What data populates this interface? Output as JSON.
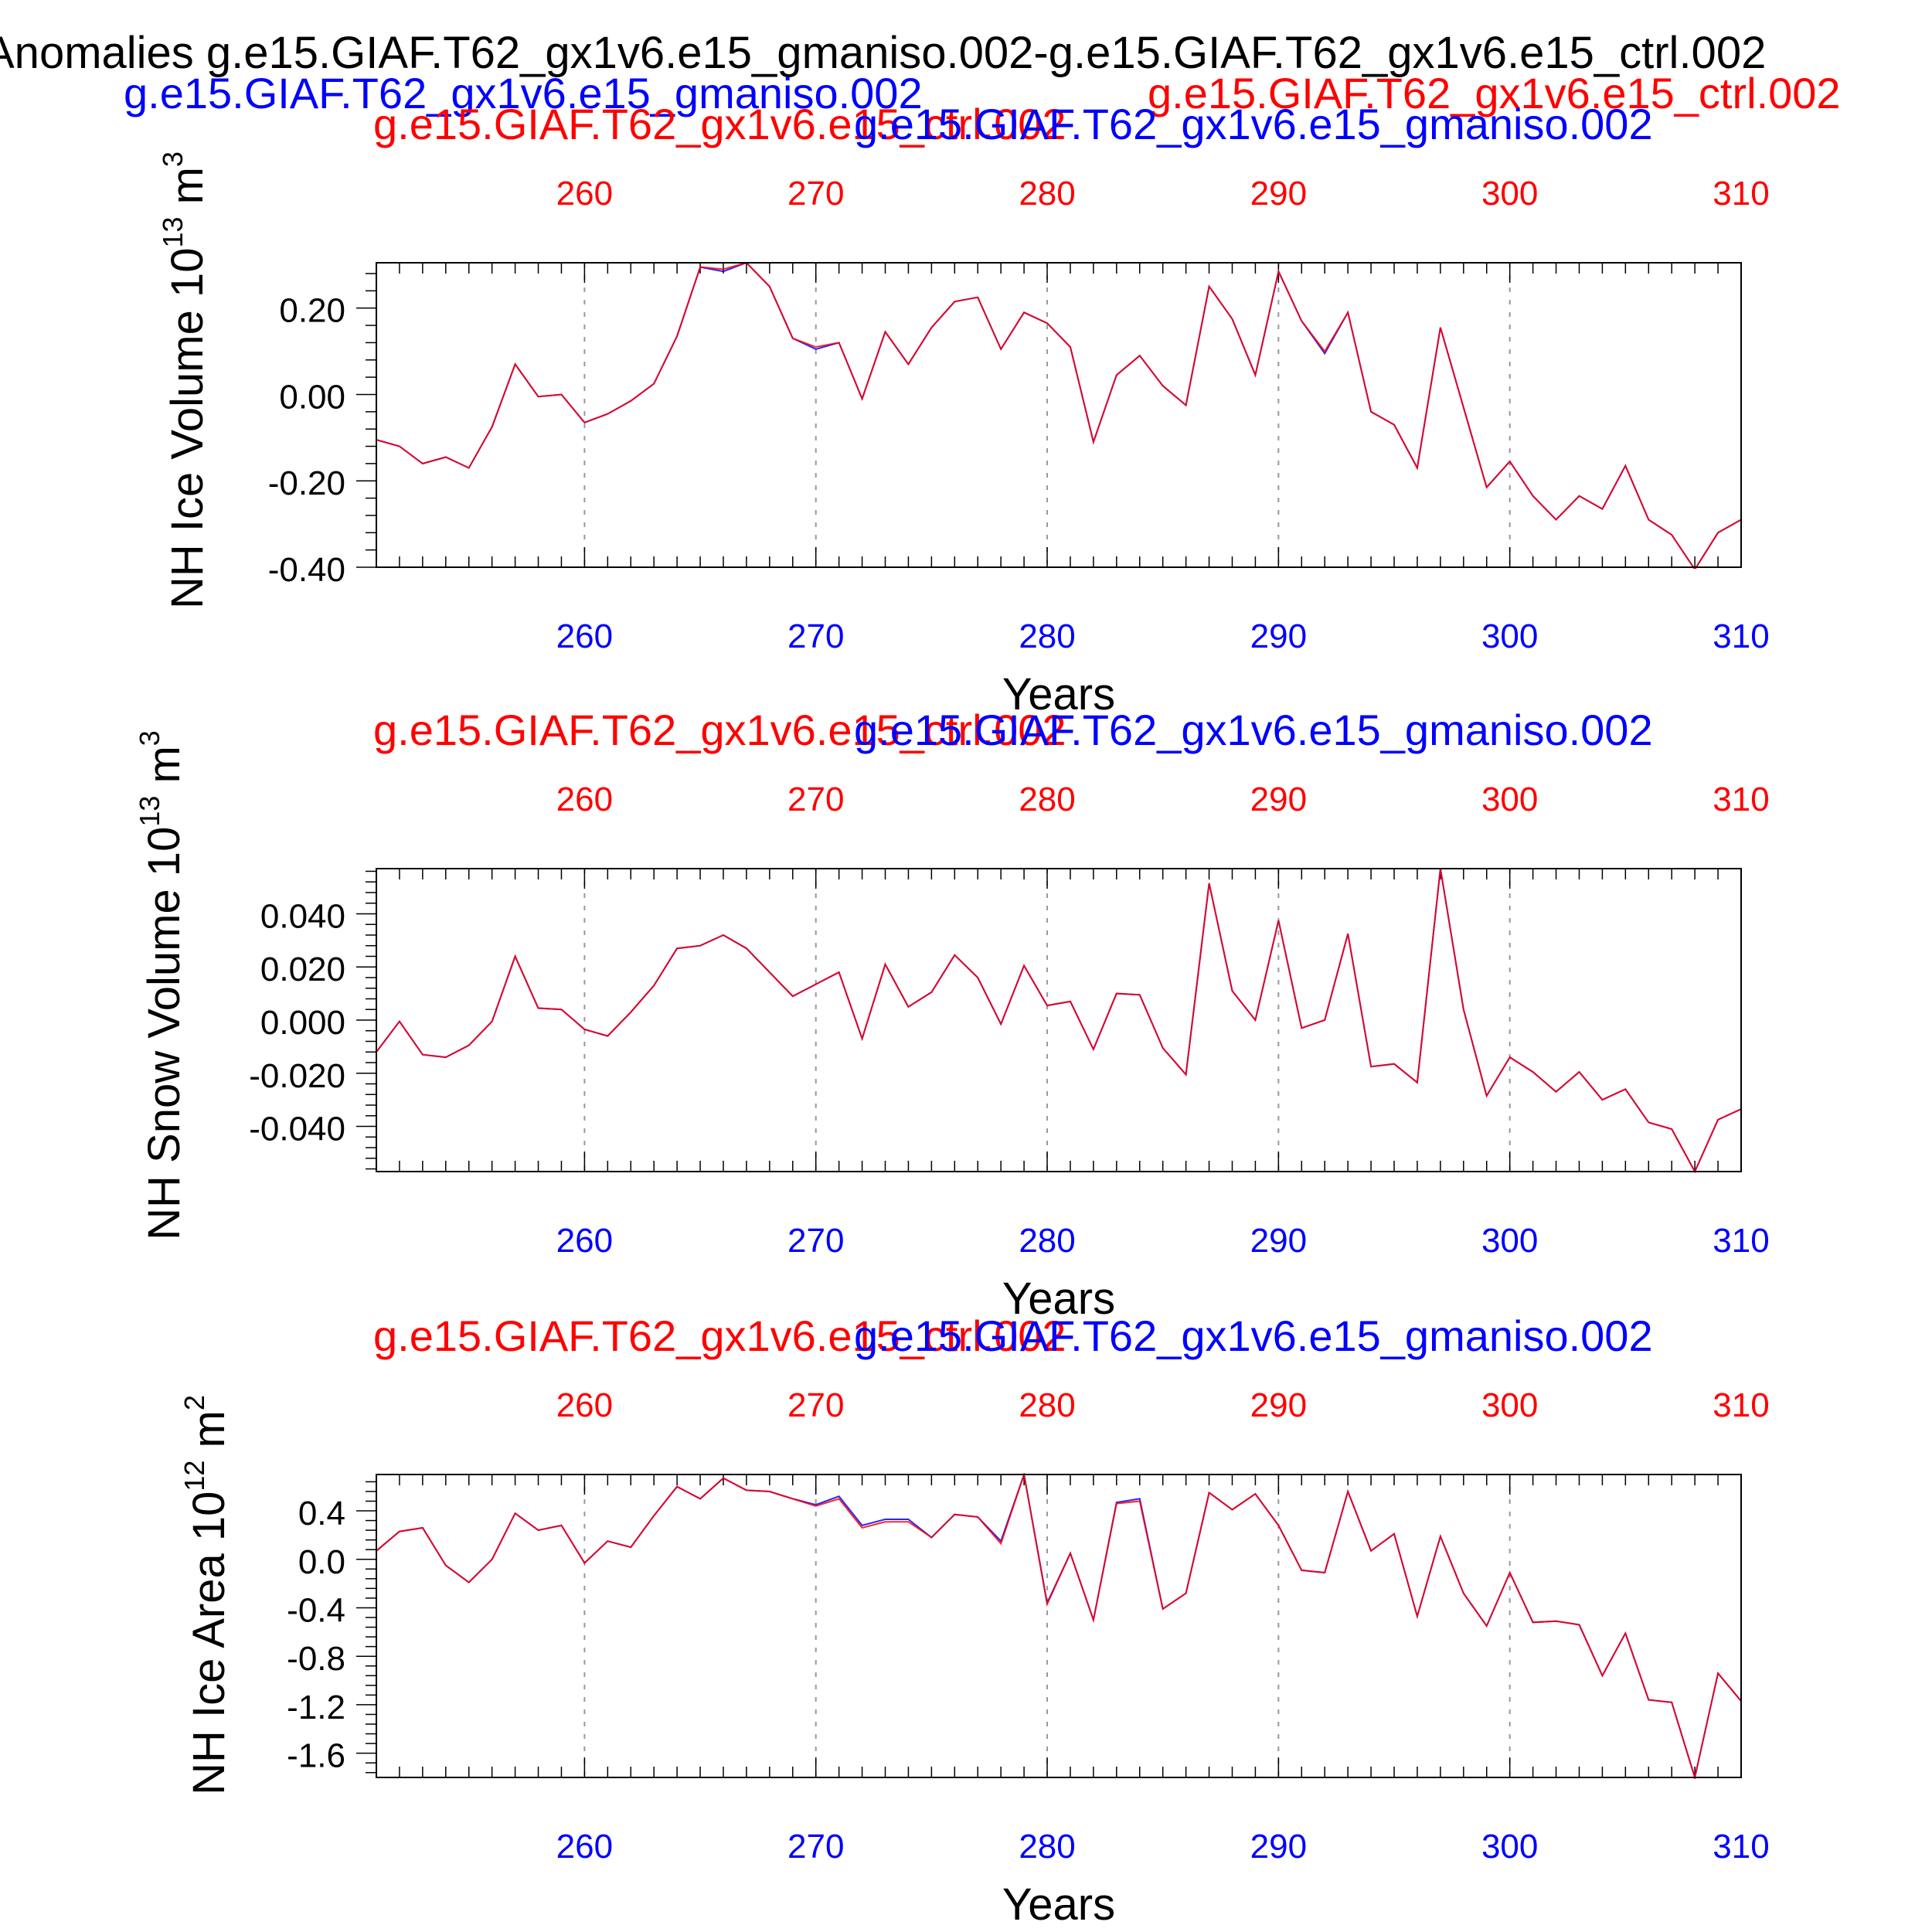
{
  "header": {
    "title": "Anomalies g.e15.GIAF.T62_gx1v6.e15_gmaniso.002-g.e15.GIAF.T62_gx1v6.e15_ctrl.002",
    "case_blue": "g.e15.GIAF.T62_gx1v6.e15_gmaniso.002",
    "case_red": "g.e15.GIAF.T62_gx1v6.e15_ctrl.002"
  },
  "colors": {
    "red": "#ff0000",
    "blue": "#0000ff",
    "black": "#000000",
    "grid": "#999999"
  },
  "chart_data": [
    {
      "type": "line",
      "id": "ice-volume",
      "top_label_red": "g.e15.GIAF.T62_gx1v6.e15_ctrl.002",
      "top_label_blue": "g.e15.GIAF.T62_gx1v6.e15_gmaniso.002",
      "ylabel_main": "NH Ice Volume 10",
      "ylabel_exp": "13",
      "ylabel_unit": " m",
      "ylabel_unit_exp": "3",
      "xlabel": "Years",
      "xlim": [
        251,
        310
      ],
      "ylim": [
        -0.4,
        0.305
      ],
      "yticks": [
        -0.4,
        -0.2,
        0.0,
        0.2
      ],
      "ytick_labels": [
        "-0.40",
        "-0.20",
        "0.00",
        "0.20"
      ],
      "xticks": [
        260,
        270,
        280,
        290,
        300,
        310
      ],
      "xtick_labels": [
        "260",
        "270",
        "280",
        "290",
        "300",
        "310"
      ],
      "grid_x": [
        260,
        270,
        280,
        290,
        300
      ],
      "x": [
        251,
        252,
        253,
        254,
        255,
        256,
        257,
        258,
        259,
        260,
        261,
        262,
        263,
        264,
        265,
        266,
        267,
        268,
        269,
        270,
        271,
        272,
        273,
        274,
        275,
        276,
        277,
        278,
        279,
        280,
        281,
        282,
        283,
        284,
        285,
        286,
        287,
        288,
        289,
        290,
        291,
        292,
        293,
        294,
        295,
        296,
        297,
        298,
        299,
        300,
        301,
        302,
        303,
        304,
        305,
        306,
        307,
        308,
        309,
        310
      ],
      "series": [
        {
          "color": "red",
          "values": [
            -0.105,
            -0.12,
            -0.16,
            -0.145,
            -0.17,
            -0.075,
            0.07,
            -0.005,
            0.0,
            -0.065,
            -0.045,
            -0.015,
            0.025,
            0.135,
            0.295,
            0.29,
            0.305,
            0.25,
            0.13,
            0.11,
            0.12,
            -0.01,
            0.145,
            0.07,
            0.155,
            0.215,
            0.225,
            0.105,
            0.19,
            0.165,
            0.11,
            -0.11,
            0.045,
            0.09,
            0.02,
            -0.025,
            0.25,
            0.175,
            0.045,
            0.285,
            0.17,
            0.1,
            0.19,
            -0.04,
            -0.07,
            -0.17,
            0.155,
            -0.03,
            -0.215,
            -0.155,
            -0.235,
            -0.29,
            -0.235,
            -0.265,
            -0.165,
            -0.29,
            -0.325,
            -0.405,
            -0.32,
            -0.29
          ]
        },
        {
          "color": "blue",
          "values": [
            -0.105,
            -0.12,
            -0.16,
            -0.145,
            -0.17,
            -0.075,
            0.07,
            -0.005,
            0.0,
            -0.065,
            -0.045,
            -0.015,
            0.025,
            0.135,
            0.295,
            0.285,
            0.305,
            0.25,
            0.13,
            0.105,
            0.12,
            -0.01,
            0.145,
            0.07,
            0.155,
            0.215,
            0.225,
            0.105,
            0.19,
            0.165,
            0.11,
            -0.11,
            0.045,
            0.09,
            0.02,
            -0.025,
            0.25,
            0.175,
            0.045,
            0.285,
            0.17,
            0.095,
            0.19,
            -0.04,
            -0.07,
            -0.17,
            0.155,
            -0.03,
            -0.215,
            -0.155,
            -0.235,
            -0.29,
            -0.235,
            -0.265,
            -0.165,
            -0.29,
            -0.325,
            -0.405,
            -0.32,
            -0.29
          ]
        }
      ]
    },
    {
      "type": "line",
      "id": "snow-volume",
      "top_label_red": "g.e15.GIAF.T62_gx1v6.e15_ctrl.002",
      "top_label_blue": "g.e15.GIAF.T62_gx1v6.e15_gmaniso.002",
      "ylabel_main": "NH Snow Volume 10",
      "ylabel_exp": "13",
      "ylabel_unit": " m",
      "ylabel_unit_exp": "3",
      "xlabel": "Years",
      "xlim": [
        251,
        310
      ],
      "ylim": [
        -0.057,
        0.057
      ],
      "yticks": [
        -0.04,
        -0.02,
        0.0,
        0.02,
        0.04
      ],
      "ytick_labels": [
        "-0.040",
        "-0.020",
        "0.000",
        "0.020",
        "0.040"
      ],
      "xticks": [
        260,
        270,
        280,
        290,
        300,
        310
      ],
      "xtick_labels": [
        "260",
        "270",
        "280",
        "290",
        "300",
        "310"
      ],
      "grid_x": [
        260,
        270,
        280,
        290,
        300
      ],
      "x": [
        251,
        252,
        253,
        254,
        255,
        256,
        257,
        258,
        259,
        260,
        261,
        262,
        263,
        264,
        265,
        266,
        267,
        268,
        269,
        270,
        271,
        272,
        273,
        274,
        275,
        276,
        277,
        278,
        279,
        280,
        281,
        282,
        283,
        284,
        285,
        286,
        287,
        288,
        289,
        290,
        291,
        292,
        293,
        294,
        295,
        296,
        297,
        298,
        299,
        300,
        301,
        302,
        303,
        304,
        305,
        306,
        307,
        308,
        309,
        310
      ],
      "series": [
        {
          "color": "red",
          "values": [
            -0.012,
            -0.0005,
            -0.013,
            -0.014,
            -0.0095,
            -0.0005,
            0.024,
            0.0045,
            0.004,
            -0.0035,
            -0.006,
            0.003,
            0.013,
            0.027,
            0.028,
            0.032,
            0.027,
            0.018,
            0.009,
            0.0135,
            0.018,
            -0.007,
            0.021,
            0.005,
            0.0105,
            0.0245,
            0.016,
            -0.0015,
            0.0205,
            0.0055,
            0.007,
            -0.011,
            0.01,
            0.0095,
            -0.0105,
            -0.0205,
            0.0515,
            0.011,
            0.0,
            0.0375,
            -0.003,
            0.0,
            0.0325,
            -0.0175,
            -0.0165,
            -0.0235,
            0.057,
            0.004,
            -0.0285,
            -0.014,
            -0.0195,
            -0.027,
            -0.0195,
            -0.03,
            -0.026,
            -0.0385,
            -0.041,
            -0.057,
            -0.0375,
            -0.0335
          ]
        },
        {
          "color": "blue",
          "values": [
            -0.012,
            -0.0005,
            -0.013,
            -0.014,
            -0.0095,
            -0.0005,
            0.024,
            0.0045,
            0.004,
            -0.0035,
            -0.006,
            0.003,
            0.013,
            0.027,
            0.028,
            0.032,
            0.027,
            0.018,
            0.009,
            0.0135,
            0.018,
            -0.007,
            0.021,
            0.005,
            0.0105,
            0.0245,
            0.016,
            -0.0015,
            0.0205,
            0.0055,
            0.007,
            -0.011,
            0.01,
            0.0095,
            -0.0105,
            -0.0205,
            0.0515,
            0.011,
            0.0,
            0.0375,
            -0.003,
            0.0,
            0.0325,
            -0.0175,
            -0.0165,
            -0.0235,
            0.057,
            0.004,
            -0.0285,
            -0.014,
            -0.0195,
            -0.027,
            -0.0195,
            -0.03,
            -0.026,
            -0.0385,
            -0.041,
            -0.057,
            -0.0375,
            -0.0335
          ]
        }
      ]
    },
    {
      "type": "line",
      "id": "ice-area",
      "top_label_red": "g.e15.GIAF.T62_gx1v6.e15_ctrl.002",
      "top_label_blue": "g.e15.GIAF.T62_gx1v6.e15_gmaniso.002",
      "ylabel_main": "NH Ice Area 10",
      "ylabel_exp": "12",
      "ylabel_unit": " m",
      "ylabel_unit_exp": "2",
      "xlabel": "Years",
      "xlim": [
        251,
        310
      ],
      "ylim": [
        -1.8,
        0.7
      ],
      "yticks": [
        -1.6,
        -1.2,
        -0.8,
        -0.4,
        0.0,
        0.4
      ],
      "ytick_labels": [
        "-1.6",
        "-1.2",
        "-0.8",
        "-0.4",
        "0.0",
        "0.4"
      ],
      "xticks": [
        260,
        270,
        280,
        290,
        300,
        310
      ],
      "xtick_labels": [
        "260",
        "270",
        "280",
        "290",
        "300",
        "310"
      ],
      "grid_x": [
        260,
        270,
        280,
        290,
        300
      ],
      "x": [
        251,
        252,
        253,
        254,
        255,
        256,
        257,
        258,
        259,
        260,
        261,
        262,
        263,
        264,
        265,
        266,
        267,
        268,
        269,
        270,
        271,
        272,
        273,
        274,
        275,
        276,
        277,
        278,
        279,
        280,
        281,
        282,
        283,
        284,
        285,
        286,
        287,
        288,
        289,
        290,
        291,
        292,
        293,
        294,
        295,
        296,
        297,
        298,
        299,
        300,
        301,
        302,
        303,
        304,
        305,
        306,
        307,
        308,
        309,
        310
      ],
      "series": [
        {
          "color": "red",
          "values": [
            0.07,
            0.23,
            0.26,
            -0.05,
            -0.19,
            0.0,
            0.38,
            0.24,
            0.28,
            -0.03,
            0.15,
            0.1,
            0.36,
            0.6,
            0.5,
            0.67,
            0.57,
            0.56,
            0.5,
            0.44,
            0.5,
            0.26,
            0.31,
            0.31,
            0.18,
            0.37,
            0.35,
            0.13,
            0.7,
            -0.37,
            0.05,
            -0.5,
            0.46,
            0.48,
            -0.41,
            -0.28,
            0.55,
            0.41,
            0.54,
            0.28,
            -0.09,
            -0.11,
            0.56,
            0.07,
            0.21,
            -0.47,
            0.19,
            -0.28,
            -0.55,
            -0.11,
            -0.52,
            -0.51,
            -0.54,
            -0.96,
            -0.61,
            -1.16,
            -1.18,
            -1.8,
            -0.94,
            -1.17
          ]
        },
        {
          "color": "blue",
          "values": [
            0.07,
            0.23,
            0.26,
            -0.05,
            -0.19,
            0.0,
            0.38,
            0.24,
            0.28,
            -0.03,
            0.15,
            0.1,
            0.36,
            0.6,
            0.5,
            0.67,
            0.57,
            0.56,
            0.5,
            0.45,
            0.52,
            0.28,
            0.33,
            0.33,
            0.18,
            0.37,
            0.35,
            0.15,
            0.7,
            -0.36,
            0.05,
            -0.5,
            0.47,
            0.5,
            -0.41,
            -0.28,
            0.55,
            0.41,
            0.54,
            0.28,
            -0.09,
            -0.11,
            0.56,
            0.07,
            0.21,
            -0.47,
            0.19,
            -0.28,
            -0.55,
            -0.11,
            -0.52,
            -0.51,
            -0.54,
            -0.96,
            -0.61,
            -1.16,
            -1.18,
            -1.8,
            -0.94,
            -1.17
          ]
        }
      ]
    }
  ]
}
